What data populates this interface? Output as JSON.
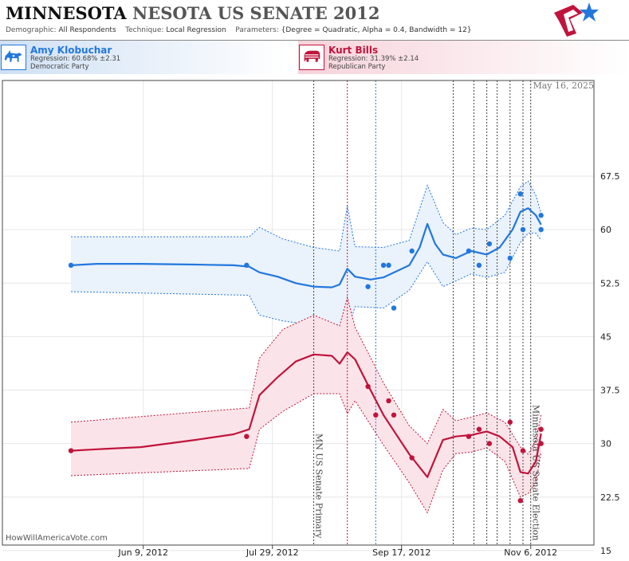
{
  "header": {
    "title_main": "MINNESOTA",
    "title_sub": "NESOTA US SENATE 2012",
    "demographic_label": "Demographic:",
    "demographic_value": "All Respondents",
    "technique_label": "Technique:",
    "technique_value": "Local Regression",
    "parameters_label": "Parameters:",
    "parameters_value": "{Degree = Quadratic, Alpha = 0.4, Bandwidth = 12}"
  },
  "candidates": {
    "dem": {
      "name": "Amy Klobuchar",
      "regression": "Regression: 60.68% ±2.31",
      "party": "Democratic Party",
      "color": "#2277dd"
    },
    "rep": {
      "name": "Kurt Bills",
      "regression": "Regression: 31.39% ±2.14",
      "party": "Republican Party",
      "color": "#c0143c"
    }
  },
  "chart_data": {
    "type": "line",
    "date_label": "May 16, 2025",
    "credit": "HowWillAmericaVote.com",
    "x_ticks": [
      "Jun 9, 2012",
      "Jul 29, 2012",
      "Sep 17, 2012",
      "Nov 6, 2012"
    ],
    "ylim": [
      10,
      72
    ],
    "y_ticks": [
      15,
      22.5,
      30,
      37.5,
      45,
      52.5,
      60,
      67.5
    ],
    "events": [
      {
        "date": "2012-08-14",
        "label": "MN US Senate Primary"
      },
      {
        "date": "2012-11-06",
        "label": "Minnesota US Senate Election"
      }
    ],
    "poll_markers": [
      {
        "date": "2012-08-27",
        "color": "#c0143c"
      },
      {
        "date": "2012-09-07",
        "color": "#2277dd"
      },
      {
        "date": "2012-10-07"
      },
      {
        "date": "2012-10-15"
      },
      {
        "date": "2012-10-20"
      },
      {
        "date": "2012-10-24"
      },
      {
        "date": "2012-10-29"
      },
      {
        "date": "2012-11-03"
      }
    ],
    "series": [
      {
        "name": "Amy Klobuchar",
        "color": "#2277dd",
        "band_fill": "#eaf2fb",
        "trend": [
          [
            "2012-05-12",
            55.0
          ],
          [
            "2012-05-22",
            55.2
          ],
          [
            "2012-06-08",
            55.2
          ],
          [
            "2012-06-29",
            55.1
          ],
          [
            "2012-07-14",
            55.0
          ],
          [
            "2012-07-20",
            54.8
          ],
          [
            "2012-07-24",
            54.0
          ],
          [
            "2012-07-31",
            53.4
          ],
          [
            "2012-08-07",
            52.5
          ],
          [
            "2012-08-14",
            52.0
          ],
          [
            "2012-08-21",
            51.9
          ],
          [
            "2012-08-24",
            52.3
          ],
          [
            "2012-08-27",
            54.5
          ],
          [
            "2012-08-30",
            53.4
          ],
          [
            "2012-09-05",
            53.0
          ],
          [
            "2012-09-10",
            53.3
          ],
          [
            "2012-09-20",
            55.0
          ],
          [
            "2012-09-24",
            57.5
          ],
          [
            "2012-09-27",
            60.8
          ],
          [
            "2012-09-30",
            58.0
          ],
          [
            "2012-10-03",
            56.5
          ],
          [
            "2012-10-08",
            56.0
          ],
          [
            "2012-10-14",
            57.0
          ],
          [
            "2012-10-20",
            56.5
          ],
          [
            "2012-10-25",
            57.5
          ],
          [
            "2012-10-30",
            60.0
          ],
          [
            "2012-11-02",
            62.5
          ],
          [
            "2012-11-05",
            63.0
          ],
          [
            "2012-11-08",
            62.0
          ],
          [
            "2012-11-10",
            60.7
          ]
        ],
        "upper": [
          [
            "2012-05-12",
            59.0
          ],
          [
            "2012-07-20",
            59.0
          ],
          [
            "2012-07-24",
            60.3
          ],
          [
            "2012-08-02",
            58.7
          ],
          [
            "2012-08-14",
            57.5
          ],
          [
            "2012-08-24",
            57.0
          ],
          [
            "2012-08-27",
            63.3
          ],
          [
            "2012-08-30",
            57.6
          ],
          [
            "2012-09-10",
            57.5
          ],
          [
            "2012-09-20",
            58.5
          ],
          [
            "2012-09-27",
            66.2
          ],
          [
            "2012-10-03",
            61.0
          ],
          [
            "2012-10-08",
            59.3
          ],
          [
            "2012-10-14",
            60.2
          ],
          [
            "2012-10-20",
            60.0
          ],
          [
            "2012-10-27",
            62.0
          ],
          [
            "2012-11-02",
            66.0
          ],
          [
            "2012-11-05",
            66.8
          ],
          [
            "2012-11-08",
            64.8
          ],
          [
            "2012-11-10",
            62.3
          ]
        ],
        "lower": [
          [
            "2012-05-12",
            51.3
          ],
          [
            "2012-07-20",
            50.8
          ],
          [
            "2012-07-24",
            48.0
          ],
          [
            "2012-08-02",
            47.2
          ],
          [
            "2012-08-14",
            46.6
          ],
          [
            "2012-08-24",
            46.5
          ],
          [
            "2012-08-27",
            45.8
          ],
          [
            "2012-08-30",
            49.2
          ],
          [
            "2012-09-10",
            49.0
          ],
          [
            "2012-09-20",
            51.5
          ],
          [
            "2012-09-27",
            55.5
          ],
          [
            "2012-10-03",
            52.0
          ],
          [
            "2012-10-08",
            52.8
          ],
          [
            "2012-10-14",
            53.8
          ],
          [
            "2012-10-20",
            53.3
          ],
          [
            "2012-10-27",
            54.0
          ],
          [
            "2012-11-02",
            58.2
          ],
          [
            "2012-11-05",
            59.5
          ],
          [
            "2012-11-08",
            59.5
          ],
          [
            "2012-11-10",
            58.5
          ]
        ],
        "points": [
          [
            "2012-05-12",
            55
          ],
          [
            "2012-07-19",
            55
          ],
          [
            "2012-09-04",
            52
          ],
          [
            "2012-09-10",
            55
          ],
          [
            "2012-09-12",
            55
          ],
          [
            "2012-09-14",
            49
          ],
          [
            "2012-09-21",
            57
          ],
          [
            "2012-10-13",
            57
          ],
          [
            "2012-10-17",
            55
          ],
          [
            "2012-10-21",
            58
          ],
          [
            "2012-10-29",
            56
          ],
          [
            "2012-11-02",
            65
          ],
          [
            "2012-11-03",
            60
          ],
          [
            "2012-11-10",
            62
          ],
          [
            "2012-11-10",
            60
          ]
        ]
      },
      {
        "name": "Kurt Bills",
        "color": "#c0143c",
        "band_fill": "#fbe4e9",
        "trend": [
          [
            "2012-05-12",
            29.0
          ],
          [
            "2012-05-22",
            29.2
          ],
          [
            "2012-06-08",
            29.5
          ],
          [
            "2012-06-29",
            30.5
          ],
          [
            "2012-07-14",
            31.3
          ],
          [
            "2012-07-20",
            32.0
          ],
          [
            "2012-07-24",
            36.8
          ],
          [
            "2012-07-31",
            39.3
          ],
          [
            "2012-08-07",
            41.5
          ],
          [
            "2012-08-14",
            42.5
          ],
          [
            "2012-08-21",
            42.3
          ],
          [
            "2012-08-24",
            41.2
          ],
          [
            "2012-08-27",
            42.8
          ],
          [
            "2012-08-30",
            41.8
          ],
          [
            "2012-09-05",
            37.5
          ],
          [
            "2012-09-10",
            34.0
          ],
          [
            "2012-09-20",
            28.5
          ],
          [
            "2012-09-27",
            25.3
          ],
          [
            "2012-10-03",
            30.5
          ],
          [
            "2012-10-08",
            31.0
          ],
          [
            "2012-10-14",
            31.2
          ],
          [
            "2012-10-20",
            31.7
          ],
          [
            "2012-10-25",
            31.0
          ],
          [
            "2012-10-30",
            29.5
          ],
          [
            "2012-11-02",
            26.0
          ],
          [
            "2012-11-05",
            25.8
          ],
          [
            "2012-11-08",
            27.5
          ],
          [
            "2012-11-10",
            31.4
          ]
        ],
        "upper": [
          [
            "2012-05-12",
            33.0
          ],
          [
            "2012-07-20",
            35.0
          ],
          [
            "2012-07-24",
            42.0
          ],
          [
            "2012-08-02",
            46.0
          ],
          [
            "2012-08-14",
            48.0
          ],
          [
            "2012-08-24",
            46.5
          ],
          [
            "2012-08-27",
            50.5
          ],
          [
            "2012-08-30",
            46.3
          ],
          [
            "2012-09-10",
            38.5
          ],
          [
            "2012-09-20",
            32.5
          ],
          [
            "2012-09-27",
            30.0
          ],
          [
            "2012-10-03",
            34.8
          ],
          [
            "2012-10-08",
            33.2
          ],
          [
            "2012-10-14",
            33.7
          ],
          [
            "2012-10-20",
            34.3
          ],
          [
            "2012-10-27",
            33.0
          ],
          [
            "2012-11-02",
            29.5
          ],
          [
            "2012-11-05",
            28.5
          ],
          [
            "2012-11-08",
            30.5
          ],
          [
            "2012-11-10",
            34.0
          ]
        ],
        "lower": [
          [
            "2012-05-12",
            25.5
          ],
          [
            "2012-07-20",
            26.5
          ],
          [
            "2012-07-24",
            32.0
          ],
          [
            "2012-08-02",
            34.5
          ],
          [
            "2012-08-14",
            37.0
          ],
          [
            "2012-08-24",
            37.0
          ],
          [
            "2012-08-27",
            34.2
          ],
          [
            "2012-08-30",
            36.0
          ],
          [
            "2012-09-10",
            29.8
          ],
          [
            "2012-09-20",
            24.5
          ],
          [
            "2012-09-27",
            20.3
          ],
          [
            "2012-10-03",
            26.3
          ],
          [
            "2012-10-08",
            28.6
          ],
          [
            "2012-10-14",
            28.8
          ],
          [
            "2012-10-20",
            29.4
          ],
          [
            "2012-10-27",
            27.5
          ],
          [
            "2012-11-02",
            22.5
          ],
          [
            "2012-11-05",
            23.0
          ],
          [
            "2012-11-08",
            24.5
          ],
          [
            "2012-11-10",
            28.8
          ]
        ],
        "points": [
          [
            "2012-05-12",
            29
          ],
          [
            "2012-07-19",
            31
          ],
          [
            "2012-09-04",
            38
          ],
          [
            "2012-09-07",
            34
          ],
          [
            "2012-09-12",
            36
          ],
          [
            "2012-09-14",
            34
          ],
          [
            "2012-09-21",
            28
          ],
          [
            "2012-10-13",
            31
          ],
          [
            "2012-10-17",
            32
          ],
          [
            "2012-10-21",
            30
          ],
          [
            "2012-10-29",
            33
          ],
          [
            "2012-11-02",
            22
          ],
          [
            "2012-11-03",
            29
          ],
          [
            "2012-11-10",
            32
          ],
          [
            "2012-11-10",
            30
          ]
        ]
      }
    ]
  }
}
